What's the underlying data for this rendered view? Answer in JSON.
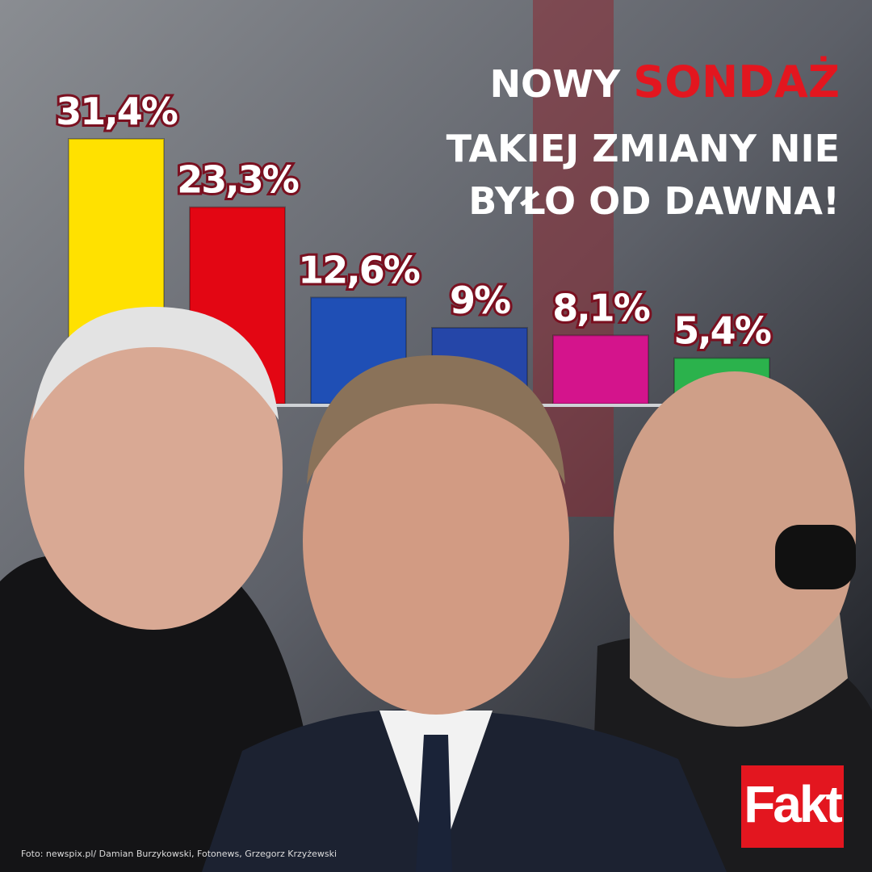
{
  "chart_data": {
    "type": "bar",
    "values": [
      31.4,
      23.3,
      12.6,
      9,
      8.1,
      5.4
    ],
    "value_labels": [
      "31,4%",
      "23,3%",
      "12,6%",
      "9%",
      "8,1%",
      "5,4%"
    ],
    "colors": [
      "#ffe100",
      "#e30613",
      "#1f4fb5",
      "#2546a8",
      "#d4148c",
      "#2bb24c"
    ],
    "headline": {
      "line1a": "NOWY",
      "line1b": "SONDAŻ",
      "line2": "TAKIEJ ZMIANY NIE",
      "line3": "BYŁO OD DAWNA!"
    },
    "logo": "Fakt",
    "credit": "Foto: newspix.pl/ Damian Burzykowski, Fotonews, Grzegorz Krzyżewski"
  }
}
